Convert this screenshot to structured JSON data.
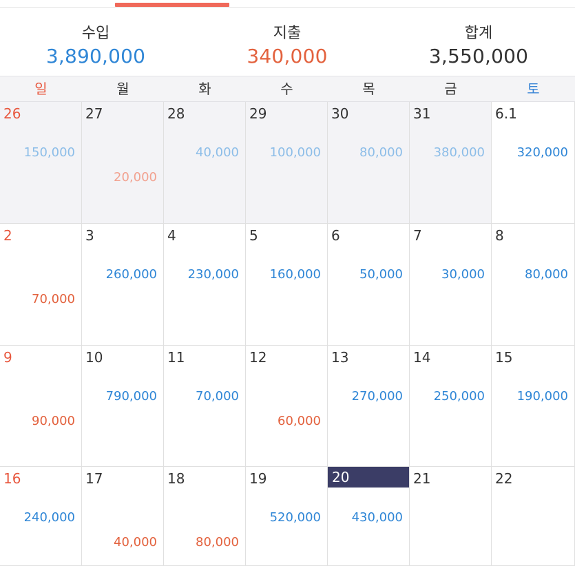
{
  "summary": {
    "income": {
      "label": "수입",
      "value": "3,890,000"
    },
    "expense": {
      "label": "지출",
      "value": "340,000"
    },
    "total": {
      "label": "합계",
      "value": "3,550,000"
    }
  },
  "colors": {
    "accent": "#f0695a",
    "income": "#2f86d6",
    "expense": "#e3623e",
    "total": "#333333",
    "today": "#3b3d66"
  },
  "weekdays": [
    "일",
    "월",
    "화",
    "수",
    "목",
    "금",
    "토"
  ],
  "weeks": [
    [
      {
        "day": "26",
        "income": "150,000",
        "expense": "",
        "prev": true
      },
      {
        "day": "27",
        "income": "",
        "expense": "20,000",
        "prev": true
      },
      {
        "day": "28",
        "income": "40,000",
        "expense": "",
        "prev": true
      },
      {
        "day": "29",
        "income": "100,000",
        "expense": "",
        "prev": true
      },
      {
        "day": "30",
        "income": "80,000",
        "expense": "",
        "prev": true
      },
      {
        "day": "31",
        "income": "380,000",
        "expense": "",
        "prev": true
      },
      {
        "day": "6.1",
        "income": "320,000",
        "expense": ""
      }
    ],
    [
      {
        "day": "2",
        "income": "",
        "expense": "70,000"
      },
      {
        "day": "3",
        "income": "260,000",
        "expense": ""
      },
      {
        "day": "4",
        "income": "230,000",
        "expense": ""
      },
      {
        "day": "5",
        "income": "160,000",
        "expense": ""
      },
      {
        "day": "6",
        "income": "50,000",
        "expense": ""
      },
      {
        "day": "7",
        "income": "30,000",
        "expense": ""
      },
      {
        "day": "8",
        "income": "80,000",
        "expense": ""
      }
    ],
    [
      {
        "day": "9",
        "income": "",
        "expense": "90,000"
      },
      {
        "day": "10",
        "income": "790,000",
        "expense": ""
      },
      {
        "day": "11",
        "income": "70,000",
        "expense": ""
      },
      {
        "day": "12",
        "income": "",
        "expense": "60,000"
      },
      {
        "day": "13",
        "income": "270,000",
        "expense": ""
      },
      {
        "day": "14",
        "income": "250,000",
        "expense": ""
      },
      {
        "day": "15",
        "income": "190,000",
        "expense": ""
      }
    ],
    [
      {
        "day": "16",
        "income": "240,000",
        "expense": ""
      },
      {
        "day": "17",
        "income": "",
        "expense": "40,000"
      },
      {
        "day": "18",
        "income": "",
        "expense": "80,000"
      },
      {
        "day": "19",
        "income": "520,000",
        "expense": ""
      },
      {
        "day": "20",
        "income": "430,000",
        "expense": "",
        "today": true
      },
      {
        "day": "21",
        "income": "",
        "expense": ""
      },
      {
        "day": "22",
        "income": "",
        "expense": ""
      }
    ]
  ]
}
